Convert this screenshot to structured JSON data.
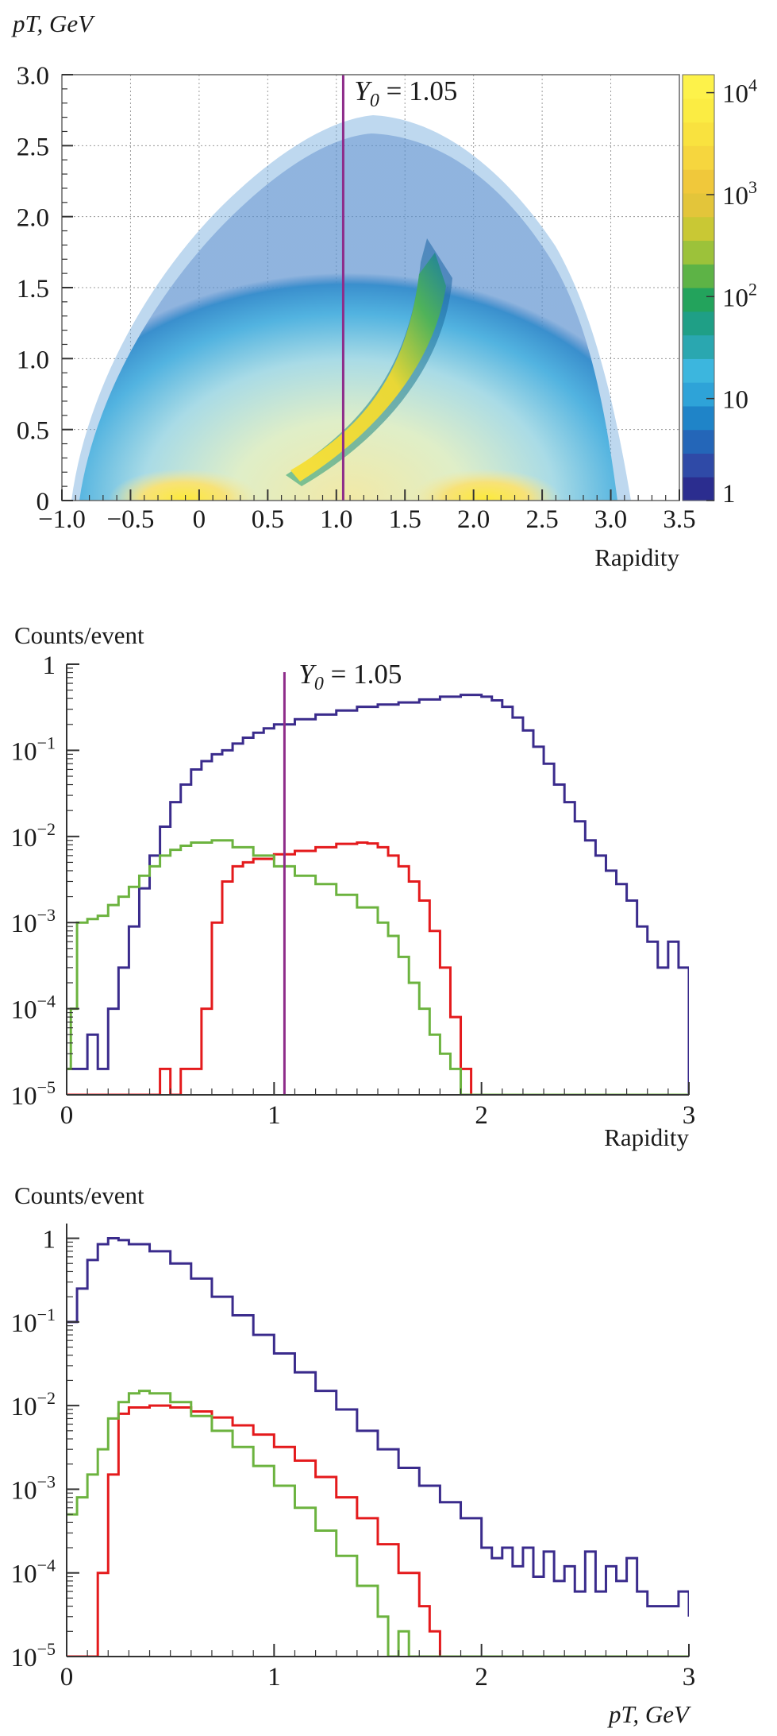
{
  "chart_data": [
    {
      "type": "heatmap",
      "title": "",
      "ylabel": "pT, GeV",
      "xlabel": "Rapidity",
      "xlim": [
        -1.0,
        3.5
      ],
      "ylim": [
        0,
        3.0
      ],
      "x_ticks": [
        "−1.0",
        "−0.5",
        "0",
        "0.5",
        "1.0",
        "1.5",
        "2.0",
        "2.5",
        "3.0",
        "3.5"
      ],
      "y_ticks": [
        "0",
        "0.5",
        "1.0",
        "1.5",
        "2.0",
        "2.5",
        "3.0"
      ],
      "grid": true,
      "annotation": {
        "text_main": "Y",
        "text_sub": "0",
        "text_rest": " = 1.05",
        "x": 1.05
      },
      "colorbar": {
        "scale": "log",
        "range": [
          1,
          15000
        ],
        "labels": [
          {
            "base": "1",
            "exp": ""
          },
          {
            "base": "10",
            "exp": ""
          },
          {
            "base": "10",
            "exp": "2"
          },
          {
            "base": "10",
            "exp": "3"
          },
          {
            "base": "10",
            "exp": "4"
          }
        ],
        "label_values": [
          1,
          10,
          100,
          1000,
          10000
        ],
        "colors": [
          "#2b2d8f",
          "#2f4aa7",
          "#2466b8",
          "#1f84c8",
          "#2ea3d8",
          "#3cb6de",
          "#2aa7b0",
          "#1f9f86",
          "#23a35c",
          "#5db346",
          "#9cc23a",
          "#c9c834",
          "#e3c53a",
          "#f0c83b",
          "#f6d63e",
          "#f9e23f",
          "#fbec43",
          "#fdf24a"
        ]
      },
      "regions": {
        "main_band_center_y": 1.0,
        "main_band_range_y": [
          -0.8,
          2.95
        ],
        "hot_spots": [
          [
            0.0,
            0.05
          ],
          [
            2.1,
            0.05
          ]
        ],
        "arc_band": {
          "y_range": [
            0.75,
            1.85
          ],
          "pt_range": [
            0.2,
            1.6
          ]
        }
      }
    },
    {
      "type": "line",
      "title": "",
      "ylabel": "Counts/event",
      "xlabel": "Rapidity",
      "xlim": [
        0,
        3
      ],
      "ylim": [
        1e-05,
        1
      ],
      "yscale": "log",
      "x_ticks": [
        "0",
        "1",
        "2",
        "3"
      ],
      "y_ticks": [
        {
          "base": "1",
          "exp": ""
        },
        {
          "base": "10",
          "exp": "−1"
        },
        {
          "base": "10",
          "exp": "−2"
        },
        {
          "base": "10",
          "exp": "−3"
        },
        {
          "base": "10",
          "exp": "−4"
        },
        {
          "base": "10",
          "exp": "−5"
        }
      ],
      "annotation": {
        "text_main": "Y",
        "text_sub": "0",
        "text_rest": " = 1.05",
        "x": 1.05
      },
      "series": [
        {
          "color": "#3a2b8c",
          "x": [
            0.0,
            0.05,
            0.1,
            0.15,
            0.2,
            0.25,
            0.3,
            0.35,
            0.4,
            0.45,
            0.5,
            0.55,
            0.6,
            0.65,
            0.7,
            0.75,
            0.8,
            0.85,
            0.9,
            0.95,
            1.0,
            1.1,
            1.2,
            1.3,
            1.4,
            1.5,
            1.6,
            1.7,
            1.8,
            1.9,
            2.0,
            2.05,
            2.1,
            2.15,
            2.2,
            2.25,
            2.3,
            2.35,
            2.4,
            2.45,
            2.5,
            2.55,
            2.6,
            2.65,
            2.7,
            2.75,
            2.8,
            2.85,
            2.9,
            2.95,
            3.0
          ],
          "values": [
            2e-05,
            2e-05,
            5e-05,
            2e-05,
            0.0001,
            0.0003,
            0.0009,
            0.0025,
            0.006,
            0.013,
            0.025,
            0.04,
            0.06,
            0.075,
            0.09,
            0.1,
            0.12,
            0.14,
            0.16,
            0.18,
            0.2,
            0.23,
            0.26,
            0.29,
            0.32,
            0.34,
            0.36,
            0.39,
            0.42,
            0.44,
            0.42,
            0.38,
            0.32,
            0.24,
            0.17,
            0.11,
            0.07,
            0.04,
            0.025,
            0.015,
            0.009,
            0.006,
            0.004,
            0.0028,
            0.0018,
            0.0009,
            0.0006,
            0.0003,
            0.0006,
            0.0003,
            1e-05
          ]
        },
        {
          "color": "#e41a1c",
          "x": [
            0.0,
            0.4,
            0.45,
            0.5,
            0.55,
            0.6,
            0.65,
            0.7,
            0.75,
            0.8,
            0.85,
            0.9,
            1.0,
            1.1,
            1.2,
            1.3,
            1.4,
            1.45,
            1.5,
            1.55,
            1.6,
            1.65,
            1.7,
            1.75,
            1.8,
            1.85,
            1.9,
            1.95
          ],
          "values": [
            1e-05,
            1e-05,
            2e-05,
            1e-05,
            2e-05,
            2e-05,
            0.0001,
            0.001,
            0.003,
            0.0045,
            0.005,
            0.0055,
            0.0062,
            0.0068,
            0.0075,
            0.0082,
            0.0085,
            0.0083,
            0.0075,
            0.006,
            0.0045,
            0.003,
            0.0018,
            0.0008,
            0.0003,
            8e-05,
            2e-05,
            1e-05
          ]
        },
        {
          "color": "#6cb33f",
          "x": [
            0.0,
            0.02,
            0.05,
            0.1,
            0.15,
            0.2,
            0.25,
            0.3,
            0.35,
            0.4,
            0.45,
            0.5,
            0.55,
            0.6,
            0.7,
            0.8,
            0.9,
            1.0,
            1.1,
            1.2,
            1.3,
            1.4,
            1.5,
            1.55,
            1.6,
            1.65,
            1.7,
            1.75,
            1.8,
            1.85,
            1.9,
            1.95,
            2.0,
            3.0
          ],
          "values": [
            2e-05,
            0.0001,
            0.001,
            0.0011,
            0.0012,
            0.0016,
            0.002,
            0.0026,
            0.0035,
            0.0045,
            0.006,
            0.007,
            0.0078,
            0.0085,
            0.009,
            0.0075,
            0.006,
            0.0045,
            0.0035,
            0.0028,
            0.0021,
            0.0015,
            0.001,
            0.0007,
            0.0004,
            0.0002,
            0.0001,
            5e-05,
            3e-05,
            2e-05,
            1e-05,
            1e-05,
            1e-05,
            1e-05
          ]
        }
      ]
    },
    {
      "type": "line",
      "title": "",
      "ylabel": "Counts/event",
      "xlabel": "pT, GeV",
      "xlim": [
        0,
        3
      ],
      "ylim": [
        1e-05,
        1.5
      ],
      "yscale": "log",
      "x_ticks": [
        "0",
        "1",
        "2",
        "3"
      ],
      "y_ticks": [
        {
          "base": "1",
          "exp": ""
        },
        {
          "base": "10",
          "exp": "−1"
        },
        {
          "base": "10",
          "exp": "−2"
        },
        {
          "base": "10",
          "exp": "−3"
        },
        {
          "base": "10",
          "exp": "−4"
        },
        {
          "base": "10",
          "exp": "−5"
        }
      ],
      "series": [
        {
          "color": "#3a2b8c",
          "x": [
            0.0,
            0.05,
            0.1,
            0.15,
            0.2,
            0.25,
            0.3,
            0.4,
            0.5,
            0.6,
            0.7,
            0.8,
            0.9,
            1.0,
            1.1,
            1.2,
            1.3,
            1.4,
            1.5,
            1.6,
            1.7,
            1.8,
            1.9,
            2.0,
            2.05,
            2.1,
            2.15,
            2.2,
            2.25,
            2.3,
            2.35,
            2.4,
            2.45,
            2.5,
            2.55,
            2.6,
            2.65,
            2.7,
            2.75,
            2.8,
            2.85,
            2.9,
            2.95,
            3.0
          ],
          "values": [
            0.1,
            0.25,
            0.55,
            0.85,
            1.0,
            0.95,
            0.85,
            0.7,
            0.5,
            0.33,
            0.2,
            0.12,
            0.07,
            0.042,
            0.025,
            0.015,
            0.009,
            0.005,
            0.003,
            0.0018,
            0.0011,
            0.0007,
            0.00045,
            0.0002,
            0.00015,
            0.0002,
            0.00012,
            0.0002,
            9e-05,
            0.00018,
            8e-05,
            0.00012,
            6e-05,
            0.00018,
            6e-05,
            0.00012,
            8e-05,
            0.00015,
            6e-05,
            4e-05,
            4e-05,
            4e-05,
            6e-05,
            3e-05
          ]
        },
        {
          "color": "#e41a1c",
          "x": [
            0.0,
            0.1,
            0.15,
            0.2,
            0.25,
            0.3,
            0.4,
            0.5,
            0.6,
            0.7,
            0.8,
            0.9,
            1.0,
            1.1,
            1.2,
            1.3,
            1.4,
            1.5,
            1.6,
            1.7,
            1.75,
            1.8
          ],
          "values": [
            1e-05,
            1e-05,
            0.0001,
            0.0015,
            0.008,
            0.0095,
            0.01,
            0.0095,
            0.0085,
            0.0072,
            0.0058,
            0.0045,
            0.0032,
            0.0022,
            0.0014,
            0.0008,
            0.00045,
            0.00022,
            0.0001,
            4e-05,
            2e-05,
            1e-05
          ]
        },
        {
          "color": "#6cb33f",
          "x": [
            0.0,
            0.05,
            0.1,
            0.15,
            0.2,
            0.25,
            0.3,
            0.35,
            0.4,
            0.5,
            0.6,
            0.7,
            0.8,
            0.9,
            1.0,
            1.1,
            1.2,
            1.3,
            1.4,
            1.5,
            1.55,
            1.6,
            1.65,
            1.7,
            3.0
          ],
          "values": [
            0.0005,
            0.0008,
            0.0015,
            0.003,
            0.007,
            0.011,
            0.014,
            0.015,
            0.014,
            0.011,
            0.0075,
            0.005,
            0.0032,
            0.0019,
            0.0011,
            0.0006,
            0.00032,
            0.00016,
            7e-05,
            3e-05,
            1e-05,
            2e-05,
            1e-05,
            1e-05,
            1e-05
          ]
        }
      ]
    }
  ]
}
